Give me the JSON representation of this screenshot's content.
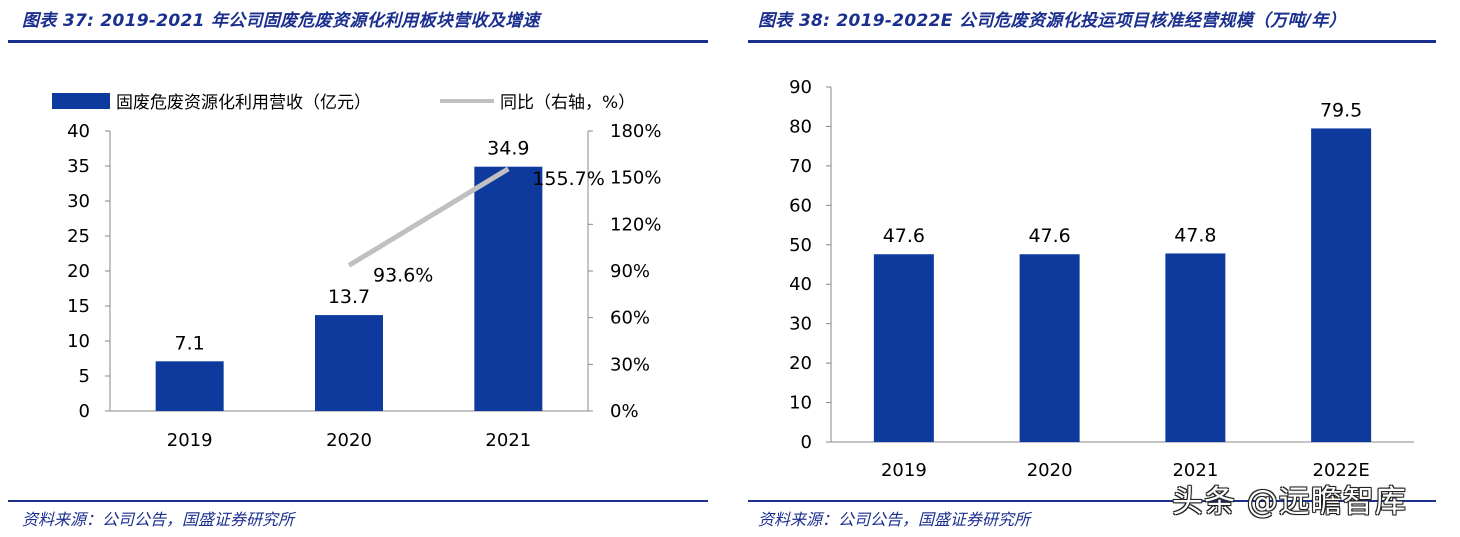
{
  "left": {
    "title": "图表 37:  2019-2021 年公司固废危废资源化利用板块营收及增速",
    "source": "资料来源：公司公告，国盛证券研究所"
  },
  "right": {
    "title": "图表 38:  2019-2022E 公司危废资源化投运项目核准经营规模（万吨/年）",
    "source": "资料来源：公司公告，国盛证券研究所"
  },
  "watermark": "头条 @远瞻智库",
  "colors": {
    "bar": "#0d3a9c",
    "line": "#c0c0c0",
    "title": "#1b2f8f"
  },
  "chart_data": [
    {
      "type": "bar",
      "categories": [
        "2019",
        "2020",
        "2021"
      ],
      "series": [
        {
          "name": "固废危废资源化利用营收（亿元）",
          "kind": "bar",
          "axis": "left",
          "values": [
            7.1,
            13.7,
            34.9
          ],
          "labels": [
            "7.1",
            "13.7",
            "34.9"
          ]
        },
        {
          "name": "同比（右轴，%）",
          "kind": "line",
          "axis": "right",
          "values": [
            null,
            93.6,
            155.7
          ],
          "labels": [
            "",
            "93.6%",
            "155.7%"
          ]
        }
      ],
      "ylim": [
        0,
        40
      ],
      "yticks": [
        0,
        5,
        10,
        15,
        20,
        25,
        30,
        35,
        40
      ],
      "y2lim": [
        0,
        180
      ],
      "y2ticks": [
        "0%",
        "30%",
        "60%",
        "90%",
        "120%",
        "150%",
        "180%"
      ],
      "legend_position": "top"
    },
    {
      "type": "bar",
      "categories": [
        "2019",
        "2020",
        "2021",
        "2022E"
      ],
      "values": [
        47.6,
        47.6,
        47.8,
        79.5
      ],
      "labels": [
        "47.6",
        "47.6",
        "47.8",
        "79.5"
      ],
      "ylim": [
        0,
        90
      ],
      "yticks": [
        0,
        10,
        20,
        30,
        40,
        50,
        60,
        70,
        80,
        90
      ]
    }
  ]
}
